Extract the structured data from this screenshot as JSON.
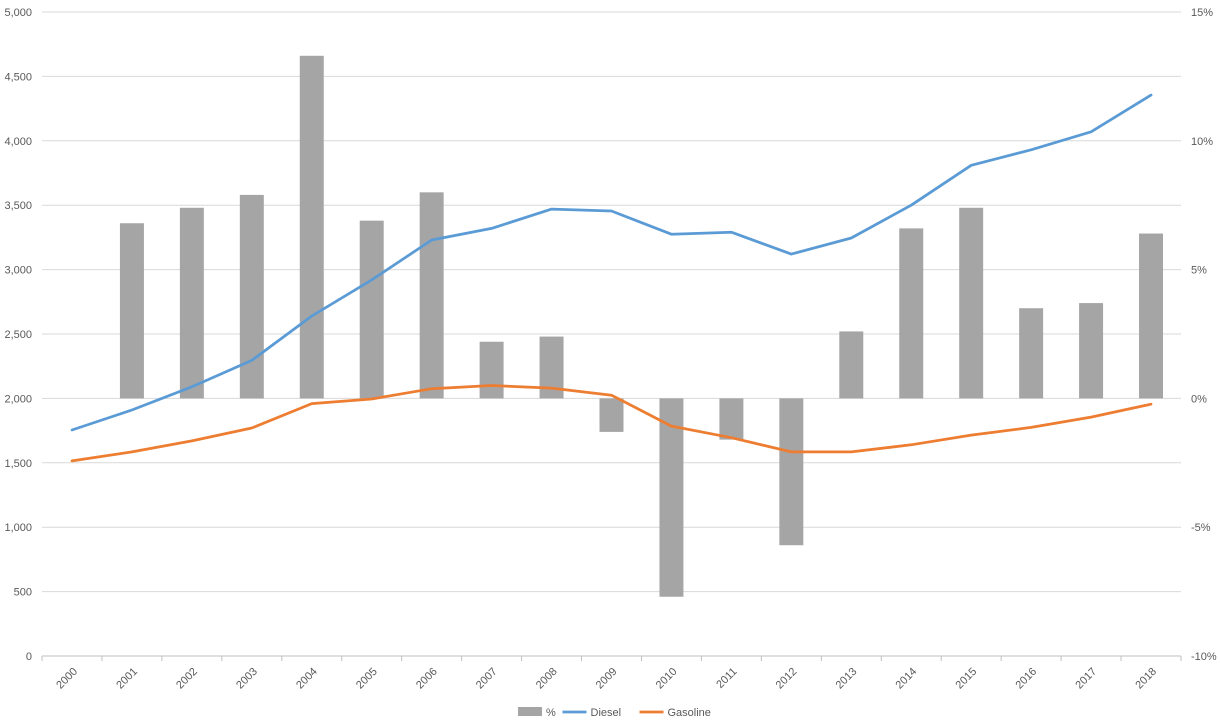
{
  "chart_data": {
    "type": "bar+line",
    "title": "",
    "xlabel": "",
    "ylabel": "",
    "categories": [
      "2000",
      "2001",
      "2002",
      "2003",
      "2004",
      "2005",
      "2006",
      "2007",
      "2008",
      "2009",
      "2010",
      "2011",
      "2012",
      "2013",
      "2014",
      "2015",
      "2016",
      "2017",
      "2018"
    ],
    "series": [
      {
        "name": "%",
        "chart_type": "bar",
        "axis": "right",
        "color": "#a5a5a5",
        "values": [
          null,
          6.8,
          7.4,
          7.9,
          13.3,
          6.9,
          8.0,
          2.2,
          2.4,
          -1.3,
          -7.7,
          -1.6,
          -5.7,
          2.6,
          6.6,
          7.4,
          3.5,
          3.7,
          6.4
        ]
      },
      {
        "name": "Diesel",
        "chart_type": "line",
        "axis": "left",
        "color": "#5b9bd5",
        "values": [
          1755,
          1910,
          2090,
          2295,
          2640,
          2920,
          3230,
          3320,
          3470,
          3455,
          3275,
          3290,
          3120,
          3245,
          3500,
          3810,
          3930,
          4070,
          4355
        ]
      },
      {
        "name": "Gasoline",
        "chart_type": "line",
        "axis": "left",
        "color": "#ed7d31",
        "values": [
          1515,
          1585,
          1670,
          1770,
          1960,
          1995,
          2075,
          2100,
          2080,
          2025,
          1785,
          1695,
          1585,
          1585,
          1640,
          1715,
          1775,
          1855,
          1955
        ]
      }
    ],
    "y_left": {
      "min": 0,
      "max": 5000,
      "step": 500,
      "ticks": [
        "0",
        "500",
        "1,000",
        "1,500",
        "2,000",
        "2,500",
        "3,000",
        "3,500",
        "4,000",
        "4,500",
        "5,000"
      ]
    },
    "y_right": {
      "min": -10,
      "max": 15,
      "step": 5,
      "ticks": [
        "-10%",
        "-5%",
        "0%",
        "5%",
        "10%",
        "15%"
      ]
    },
    "grid": true,
    "legend": {
      "position": "bottom",
      "items": [
        {
          "name": "%",
          "symbol": "box",
          "color": "#a5a5a5"
        },
        {
          "name": "Diesel",
          "symbol": "line",
          "color": "#5b9bd5"
        },
        {
          "name": "Gasoline",
          "symbol": "line",
          "color": "#ed7d31"
        }
      ]
    },
    "colors": {
      "grid": "#d9d9d9",
      "axis": "#bfbfbf",
      "text": "#595959"
    }
  }
}
